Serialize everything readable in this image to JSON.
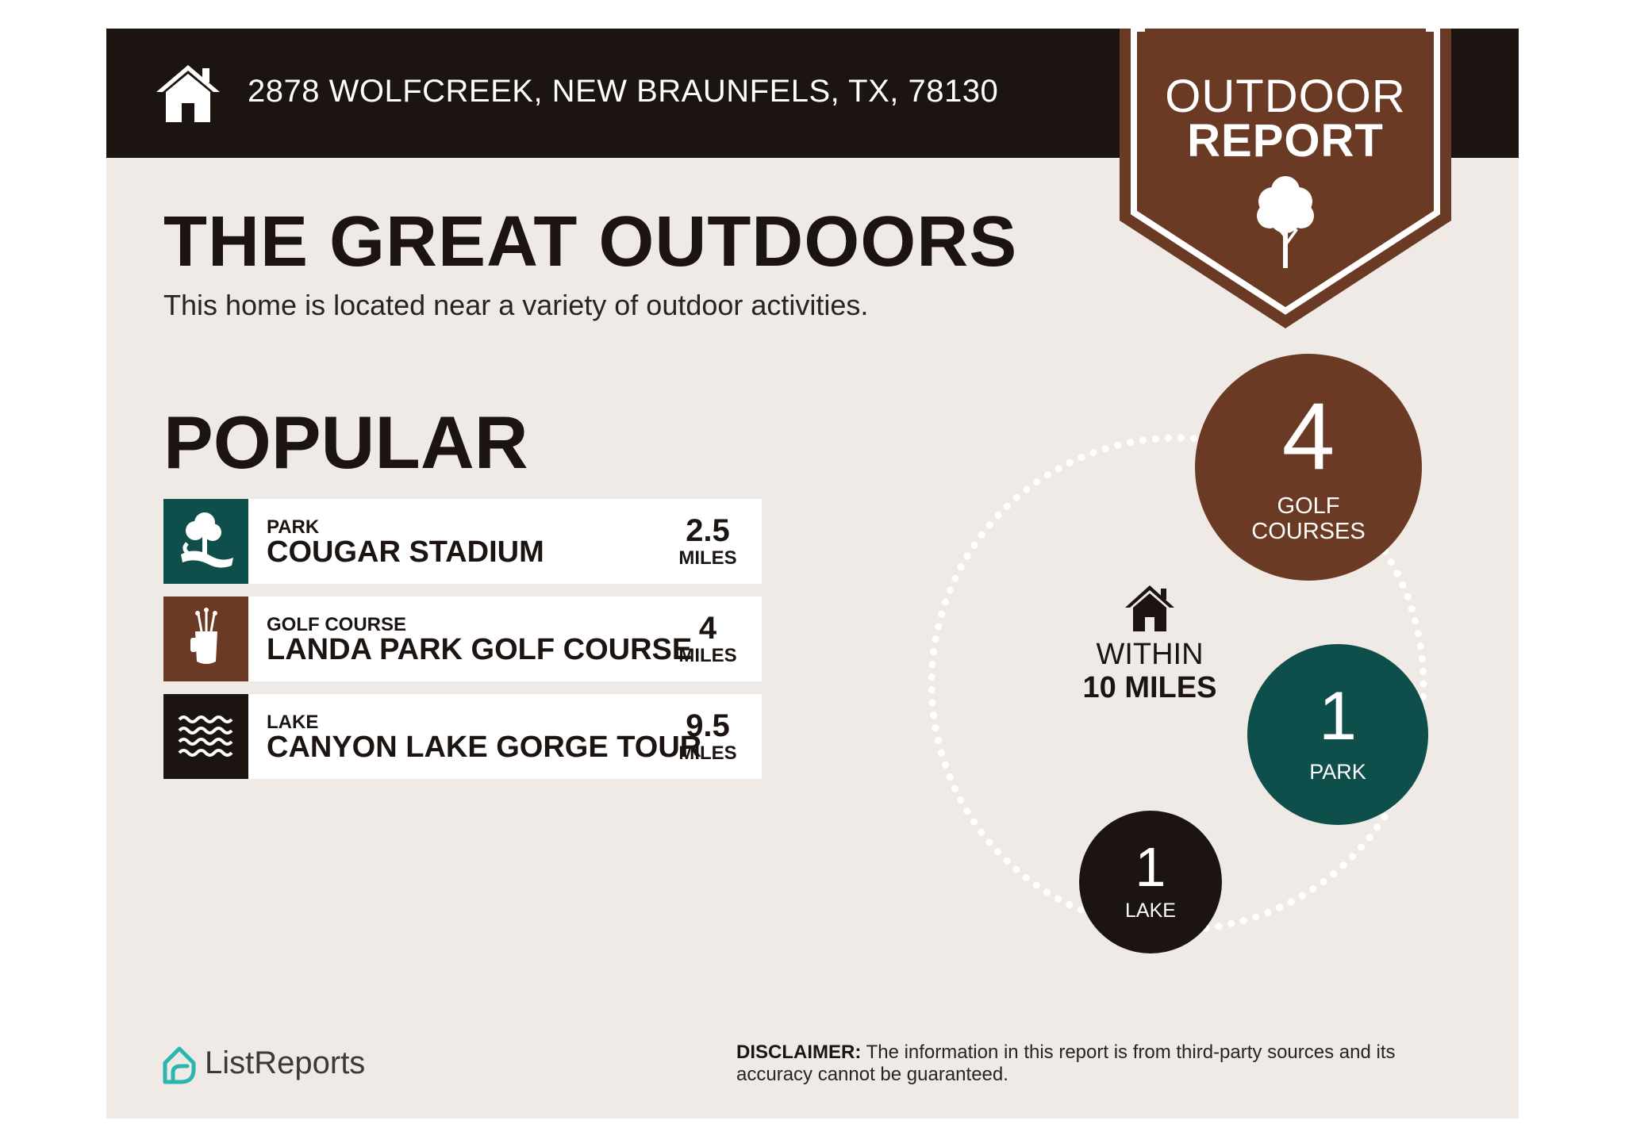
{
  "header": {
    "address": "2878 WOLFCREEK, NEW BRAUNFELS, TX, 78130",
    "badge_line1": "OUTDOOR",
    "badge_line2": "REPORT"
  },
  "main": {
    "headline": "THE GREAT OUTDOORS",
    "subhead": "This home is located near a variety of outdoor activities.",
    "popular_title": "POPULAR"
  },
  "popular": [
    {
      "category": "PARK",
      "name": "COUGAR STADIUM",
      "distance": "2.5",
      "unit": "MILES",
      "icon": "park-icon",
      "color": "#0e4f4b"
    },
    {
      "category": "GOLF COURSE",
      "name": "LANDA PARK GOLF COURSE",
      "distance": "4",
      "unit": "MILES",
      "icon": "golf-bag-icon",
      "color": "#6b3a24"
    },
    {
      "category": "LAKE",
      "name": "CANYON LAKE GORGE TOUR",
      "distance": "9.5",
      "unit": "MILES",
      "icon": "waves-icon",
      "color": "#1c1411"
    }
  ],
  "summary": {
    "center_line1": "WITHIN",
    "center_line2": "10 MILES",
    "golf": {
      "count": "4",
      "line1": "GOLF",
      "line2": "COURSES",
      "color": "#6b3a24"
    },
    "park": {
      "count": "1",
      "label": "PARK",
      "color": "#0e4f4b"
    },
    "lake": {
      "count": "1",
      "label": "LAKE",
      "color": "#1c1411"
    }
  },
  "footer": {
    "brand": "ListReports",
    "disclaimer_label": "DISCLAIMER:",
    "disclaimer_text": " The information in this report is from third-party sources and its accuracy cannot be guaranteed."
  },
  "colors": {
    "dark": "#1c1411",
    "brown": "#6b3a24",
    "teal": "#0e4f4b",
    "background": "#efeae6",
    "logo_teal": "#2bb5b0"
  }
}
